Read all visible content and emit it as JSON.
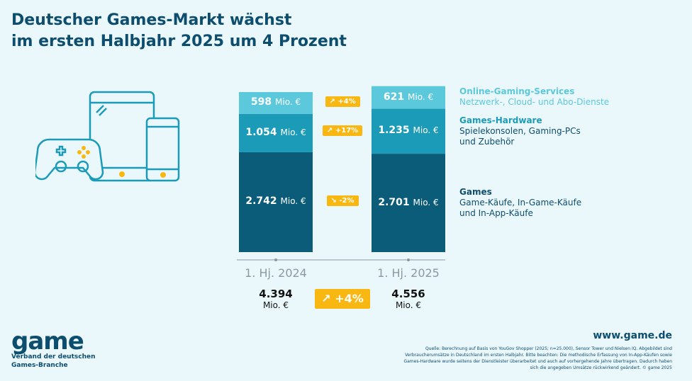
{
  "title_line1": "Deutscher Games-Markt wächst",
  "title_line2": "im ersten Halbjahr 2025 um 4 Prozent",
  "colors": {
    "online": "#5bc8dc",
    "hardware": "#1c9bb8",
    "games": "#0b5c78",
    "accent": "#f9b712",
    "background": "#eaf8fc"
  },
  "chart_data": {
    "type": "bar",
    "stacked": true,
    "categories": [
      "1. Hj. 2024",
      "1. Hj. 2025"
    ],
    "unit": "Mio. €",
    "series": [
      {
        "name": "Games",
        "values": [
          2742,
          2701
        ],
        "labels": [
          "2.742",
          "2.701"
        ],
        "change": "-2%",
        "direction": "down"
      },
      {
        "name": "Games-Hardware",
        "values": [
          1054,
          1235
        ],
        "labels": [
          "1.054",
          "1.235"
        ],
        "change": "+17%",
        "direction": "up"
      },
      {
        "name": "Online-Gaming-Services",
        "values": [
          598,
          621
        ],
        "labels": [
          "598",
          "621"
        ],
        "change": "+4%",
        "direction": "up"
      }
    ],
    "totals": [
      {
        "value": "4.394",
        "unit": "Mio. €"
      },
      {
        "value": "4.556",
        "unit": "Mio. €"
      }
    ],
    "total_change": "+4%"
  },
  "legend": [
    {
      "name": "Online-Gaming-Services",
      "desc1": "Netzwerk-, Cloud- und Abo-Dienste",
      "desc2": ""
    },
    {
      "name": "Games-Hardware",
      "desc1": "Spielekonsolen, Gaming-PCs",
      "desc2": "und Zubehör"
    },
    {
      "name": "Games",
      "desc1": "Game-Käufe, In-Game-Käufe",
      "desc2": "und In-App-Käufe"
    }
  ],
  "footer": {
    "logo": "game",
    "org_line1": "Verband der deutschen",
    "org_line2": "Games-Branche",
    "url": "www.game.de",
    "source": "Quelle: Berechnung auf Basis von YouGov Shopper (2025; n=25.000), Sensor Tower und Nielsen IQ. Abgebildet sind Verbraucherumsätze in Deutschland im ersten Halbjahr. Bitte beachten: Die methodische Erfassung von In-App-Käufen sowie Games-Hardware wurde seitens der Dienstleister überarbeitet und auch auf vorhergehende Jahre übertragen. Dadurch haben sich die angegeben Umsätze rückwirkend geändert. © game 2025"
  }
}
